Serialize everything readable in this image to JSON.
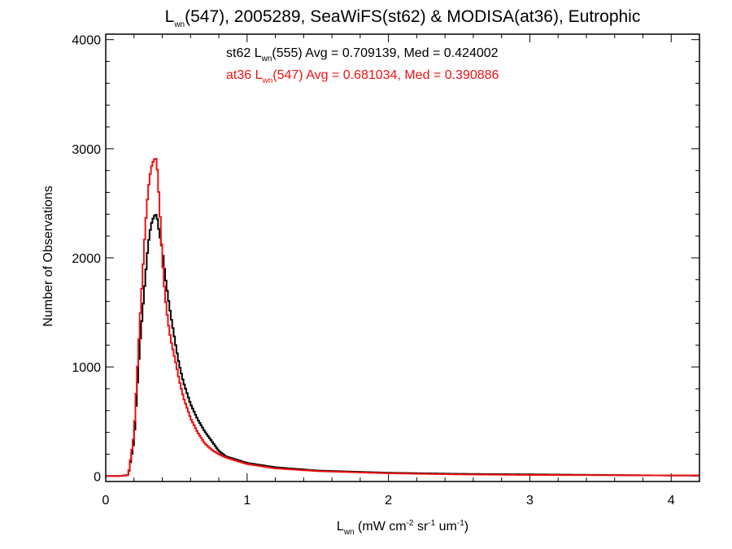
{
  "chart_data": {
    "type": "line",
    "title": {
      "pre": "L",
      "sub": "wn",
      "post": "(547), 2005289, SeaWiFS(st62) & MODISA(at36), Eutrophic"
    },
    "xlabel": {
      "pre": "L",
      "sub": "wn",
      "units": [
        " (mW cm",
        "-2",
        " sr",
        "-1",
        " um",
        "-1",
        ")"
      ]
    },
    "ylabel": "Number of Observations",
    "xlim": [
      0,
      4.2
    ],
    "ylim": [
      -50,
      4050
    ],
    "xticks": [
      0,
      1,
      2,
      3,
      4
    ],
    "yticks": [
      0,
      1000,
      2000,
      3000,
      4000
    ],
    "grid": false,
    "legend_position": "top-center",
    "series": [
      {
        "name": "st62",
        "label": {
          "pre": "st62 L",
          "sub": "wn",
          "post": "(555) Avg = 0.709139, Med = 0.424002"
        },
        "color": "#000000",
        "points": [
          [
            0,
            0
          ],
          [
            0.1,
            0
          ],
          [
            0.16,
            10
          ],
          [
            0.2,
            320
          ],
          [
            0.24,
            1180
          ],
          [
            0.28,
            1820
          ],
          [
            0.3,
            2120
          ],
          [
            0.32,
            2300
          ],
          [
            0.34,
            2380
          ],
          [
            0.36,
            2400
          ],
          [
            0.38,
            2220
          ],
          [
            0.4,
            2080
          ],
          [
            0.42,
            1840
          ],
          [
            0.44,
            1650
          ],
          [
            0.46,
            1470
          ],
          [
            0.48,
            1320
          ],
          [
            0.5,
            1160
          ],
          [
            0.52,
            1020
          ],
          [
            0.55,
            860
          ],
          [
            0.6,
            660
          ],
          [
            0.65,
            520
          ],
          [
            0.7,
            410
          ],
          [
            0.75,
            320
          ],
          [
            0.8,
            230
          ],
          [
            0.85,
            180
          ],
          [
            0.9,
            160
          ],
          [
            1.0,
            120
          ],
          [
            1.2,
            80
          ],
          [
            1.5,
            50
          ],
          [
            2.0,
            30
          ],
          [
            2.5,
            20
          ],
          [
            3.0,
            15
          ],
          [
            3.5,
            10
          ],
          [
            4.0,
            5
          ],
          [
            4.2,
            5
          ]
        ]
      },
      {
        "name": "at36",
        "label": {
          "pre": "at36 L",
          "sub": "wn",
          "post": "(547) Avg = 0.681034, Med = 0.390886"
        },
        "color": "#ee1111",
        "points": [
          [
            0,
            0
          ],
          [
            0.1,
            0
          ],
          [
            0.16,
            10
          ],
          [
            0.2,
            380
          ],
          [
            0.24,
            1380
          ],
          [
            0.28,
            2280
          ],
          [
            0.3,
            2620
          ],
          [
            0.32,
            2820
          ],
          [
            0.34,
            2900
          ],
          [
            0.36,
            2910
          ],
          [
            0.38,
            2500
          ],
          [
            0.4,
            2000
          ],
          [
            0.42,
            1650
          ],
          [
            0.44,
            1420
          ],
          [
            0.46,
            1250
          ],
          [
            0.48,
            1130
          ],
          [
            0.5,
            1010
          ],
          [
            0.52,
            880
          ],
          [
            0.55,
            720
          ],
          [
            0.6,
            530
          ],
          [
            0.65,
            400
          ],
          [
            0.7,
            300
          ],
          [
            0.75,
            240
          ],
          [
            0.8,
            200
          ],
          [
            0.85,
            170
          ],
          [
            0.9,
            150
          ],
          [
            1.0,
            110
          ],
          [
            1.2,
            70
          ],
          [
            1.5,
            45
          ],
          [
            2.0,
            25
          ],
          [
            2.5,
            15
          ],
          [
            3.0,
            10
          ],
          [
            3.5,
            8
          ],
          [
            4.0,
            5
          ],
          [
            4.2,
            5
          ]
        ]
      }
    ]
  }
}
